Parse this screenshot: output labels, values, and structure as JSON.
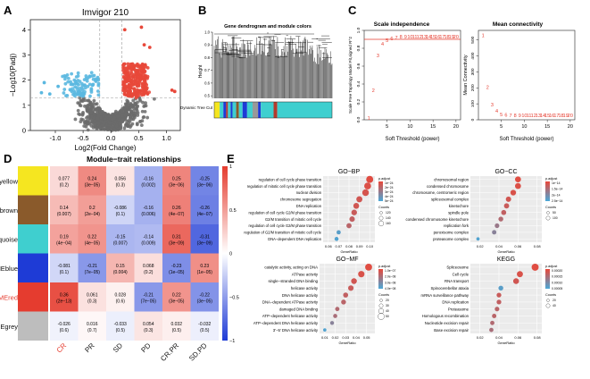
{
  "panels": {
    "a": {
      "letter": "A",
      "title": "Imvigor 210",
      "ylabel": "−Log10(Padj)",
      "xlabel": "Log2(Fold Change)",
      "xticks": [
        "-1.0",
        "-0.5",
        "0.0",
        "0.5",
        "1.0"
      ],
      "yticks": [
        "0",
        "1",
        "2",
        "3",
        "4"
      ],
      "xlim": [
        -1.45,
        1.25
      ],
      "ylim": [
        0,
        4.4
      ],
      "threshold_fc": 0.2,
      "threshold_padj_log": 1.3
    },
    "b": {
      "letter": "B",
      "title": "Gene dendrogram and module colors",
      "ylabel": "Height",
      "yticks": [
        "0.5",
        "0.6",
        "0.7",
        "0.8",
        "0.9",
        "1.0"
      ],
      "ylim": [
        0.48,
        1.0
      ],
      "bar_label": "Dynamic Tree Cut",
      "module_bar_colors": [
        "#f5e620",
        "#3fcfcf",
        "#1e3bd6",
        "#b33a2d",
        "#3fcfcf",
        "#1e3bd6",
        "#3fcfcf",
        "#8a5a2b",
        "#3fcfcf",
        "#1e3bd6",
        "#3fcfcf",
        "#999999",
        "#1e3bd6",
        "#3fcfcf",
        "#b33a2d",
        "#3fcfcf"
      ]
    },
    "c": {
      "letter": "C",
      "left": {
        "title": "Scale independence",
        "xlabel": "Soft Threshold (power)",
        "ylabel": "Scale Free Topology Model Fit,signed R^2",
        "xticks": [
          "5",
          "10",
          "15",
          "20"
        ],
        "yticks": [
          "0.0",
          "0.2",
          "0.4",
          "0.6",
          "0.8",
          "1.0"
        ],
        "xlim": [
          0,
          21
        ],
        "ylim": [
          0,
          1.0
        ],
        "hline": 0.9,
        "points": [
          {
            "x": 1,
            "y": 0.02,
            "label": "1"
          },
          {
            "x": 2,
            "y": 0.33,
            "label": "2"
          },
          {
            "x": 3,
            "y": 0.72,
            "label": "3"
          },
          {
            "x": 4,
            "y": 0.85,
            "label": "4"
          },
          {
            "x": 5,
            "y": 0.89,
            "label": "5"
          },
          {
            "x": 6,
            "y": 0.91,
            "label": "6"
          },
          {
            "x": 7,
            "y": 0.92,
            "label": "7"
          },
          {
            "x": 8,
            "y": 0.93,
            "label": "8"
          },
          {
            "x": 9,
            "y": 0.93,
            "label": "9"
          },
          {
            "x": 10,
            "y": 0.93,
            "label": "10"
          },
          {
            "x": 11,
            "y": 0.93,
            "label": "11"
          },
          {
            "x": 12,
            "y": 0.93,
            "label": "12"
          },
          {
            "x": 13,
            "y": 0.93,
            "label": "13"
          },
          {
            "x": 14,
            "y": 0.93,
            "label": "14"
          },
          {
            "x": 15,
            "y": 0.93,
            "label": "15"
          },
          {
            "x": 16,
            "y": 0.93,
            "label": "16"
          },
          {
            "x": 17,
            "y": 0.93,
            "label": "17"
          },
          {
            "x": 18,
            "y": 0.93,
            "label": "18"
          },
          {
            "x": 19,
            "y": 0.93,
            "label": "19"
          },
          {
            "x": 20,
            "y": 0.93,
            "label": "20"
          }
        ]
      },
      "right": {
        "title": "Mean connectivity",
        "xlabel": "Soft Threshold (power)",
        "ylabel": "Mean Connectivity",
        "xticks": [
          "5",
          "10",
          "15",
          "20"
        ],
        "yticks": [
          "0",
          "100",
          "200",
          "300",
          "400",
          "500"
        ],
        "xlim": [
          0,
          21
        ],
        "ylim": [
          0,
          560
        ],
        "points": [
          {
            "x": 1,
            "y": 530,
            "label": "1"
          },
          {
            "x": 2,
            "y": 205,
            "label": "2"
          },
          {
            "x": 3,
            "y": 95,
            "label": "3"
          },
          {
            "x": 4,
            "y": 55,
            "label": "4"
          },
          {
            "x": 5,
            "y": 35,
            "label": "5"
          },
          {
            "x": 6,
            "y": 30,
            "label": "6"
          },
          {
            "x": 7,
            "y": 28,
            "label": "7"
          },
          {
            "x": 8,
            "y": 28,
            "label": "8"
          },
          {
            "x": 9,
            "y": 28,
            "label": "9"
          },
          {
            "x": 10,
            "y": 28,
            "label": "10"
          },
          {
            "x": 11,
            "y": 28,
            "label": "11"
          },
          {
            "x": 12,
            "y": 28,
            "label": "12"
          },
          {
            "x": 13,
            "y": 28,
            "label": "13"
          },
          {
            "x": 14,
            "y": 28,
            "label": "14"
          },
          {
            "x": 15,
            "y": 28,
            "label": "15"
          },
          {
            "x": 16,
            "y": 28,
            "label": "16"
          },
          {
            "x": 17,
            "y": 28,
            "label": "17"
          },
          {
            "x": 18,
            "y": 28,
            "label": "18"
          },
          {
            "x": 19,
            "y": 28,
            "label": "19"
          },
          {
            "x": 20,
            "y": 28,
            "label": "20"
          }
        ]
      }
    },
    "d": {
      "letter": "D",
      "title": "Module−trait relationships",
      "rows": [
        {
          "name": "MEyellow",
          "color": "#f5e620",
          "highlight": false
        },
        {
          "name": "MEbrown",
          "color": "#8a5a2b",
          "highlight": false
        },
        {
          "name": "MEturquoise",
          "color": "#3fcfcf",
          "highlight": false
        },
        {
          "name": "MEblue",
          "color": "#1e3bd6",
          "highlight": false
        },
        {
          "name": "MEred",
          "color": "#e53c2f",
          "highlight": true
        },
        {
          "name": "MEgrey",
          "color": "#bdbdbd",
          "highlight": false
        }
      ],
      "cols": [
        {
          "name": "CR",
          "highlight": true
        },
        {
          "name": "PR",
          "highlight": false
        },
        {
          "name": "SD",
          "highlight": false
        },
        {
          "name": "PD",
          "highlight": false
        },
        {
          "name": "CR.PR",
          "highlight": false
        },
        {
          "name": "SD.PD",
          "highlight": false
        }
      ],
      "values": [
        [
          0.077,
          0.24,
          0.056,
          -0.16,
          0.25,
          -0.25
        ],
        [
          0.14,
          0.2,
          -0.086,
          -0.16,
          0.26,
          -0.26
        ],
        [
          0.19,
          0.22,
          -0.15,
          -0.14,
          0.31,
          -0.31
        ],
        [
          -0.081,
          -0.21,
          0.15,
          0.068,
          -0.23,
          0.23
        ],
        [
          0.36,
          0.061,
          0.028,
          -0.21,
          0.22,
          -0.22
        ],
        [
          -0.026,
          0.016,
          -0.033,
          0.054,
          0.032,
          -0.032
        ]
      ],
      "pvalues": [
        [
          "(0.2)",
          "(3e−05)",
          "(0.3)",
          "(0.002)",
          "(3e−06)",
          "(3e−06)"
        ],
        [
          "(0.007)",
          "(2e−04)",
          "(0.1)",
          "(0.006)",
          "(4e−07)",
          "(4e−07)"
        ],
        [
          "(4e−04)",
          "(4e−05)",
          "(0.007)",
          "(0.009)",
          "(3e−09)",
          "(3e−09)"
        ],
        [
          "(0.1)",
          "(7e−05)",
          "(0.004)",
          "(0.2)",
          "(1e−05)",
          "(1e−05)"
        ],
        [
          "(2e−13)",
          "(0.3)",
          "(0.6)",
          "(7e−05)",
          "(3e−05)",
          "(3e−05)"
        ],
        [
          "(0.6)",
          "(0.7)",
          "(0.5)",
          "(0.3)",
          "(0.5)",
          "(0.5)"
        ]
      ],
      "colorbar_ticks": [
        "1",
        "0.5",
        "0",
        "−0.5",
        "−1"
      ]
    },
    "e": {
      "letter": "E",
      "go_bp": {
        "title": "GO−BP",
        "xlabel": "GeneRatio",
        "xticks": [
          "0.06",
          "0.07",
          "0.08",
          "0.09",
          "0.10"
        ],
        "xlim": [
          0.055,
          0.105
        ],
        "legend_title": "p.adjust",
        "legend_ticks": [
          "1e−24",
          "2e−24",
          "3e−24",
          "4e−24",
          "5e−24"
        ],
        "count_title": "Counts",
        "count_values": [
          "120",
          "140",
          "160"
        ],
        "terms": [
          {
            "label": "regulation of cell cycle phase transition",
            "ratio": 0.1,
            "padj": 0.05
          },
          {
            "label": "regulation of mitotic cell cycle phase transition",
            "ratio": 0.098,
            "padj": 0.08
          },
          {
            "label": "nuclear division",
            "ratio": 0.096,
            "padj": 0.12
          },
          {
            "label": "chromosome segregation",
            "ratio": 0.09,
            "padj": 0.15
          },
          {
            "label": "DNA replication",
            "ratio": 0.087,
            "padj": 0.15
          },
          {
            "label": "regulation of cell cycle G2/M phase transition",
            "ratio": 0.085,
            "padj": 0.2
          },
          {
            "label": "G2/M transition of mitotic cell cycle",
            "ratio": 0.083,
            "padj": 0.25
          },
          {
            "label": "regulation of cell cycle G2/M phase transition",
            "ratio": 0.08,
            "padj": 0.3
          },
          {
            "label": "regulation of G2/M transition of mitotic cell cycle",
            "ratio": 0.07,
            "padj": 0.9
          },
          {
            "label": "DNA−dependent DNA replication",
            "ratio": 0.068,
            "padj": 0.95
          }
        ]
      },
      "go_cc": {
        "title": "GO−CC",
        "xlabel": "GeneRatio",
        "xticks": [
          "0.02",
          "0.04",
          "0.06",
          "0.08"
        ],
        "xlim": [
          0.01,
          0.085
        ],
        "legend_title": "p.adjust",
        "legend_ticks": [
          "1e−14",
          "1.5e−14",
          "2e−14",
          "2.5e−14"
        ],
        "count_title": "Counts",
        "count_values": [
          "50",
          "100"
        ],
        "terms": [
          {
            "label": "chromosomal region",
            "ratio": 0.06,
            "padj": 0.05
          },
          {
            "label": "condensed chromosome",
            "ratio": 0.06,
            "padj": 0.08
          },
          {
            "label": "chromosome, centromeric region",
            "ratio": 0.055,
            "padj": 0.1
          },
          {
            "label": "spliceosomal complex",
            "ratio": 0.05,
            "padj": 0.15
          },
          {
            "label": "kinetochore",
            "ratio": 0.048,
            "padj": 0.2
          },
          {
            "label": "spindle pole",
            "ratio": 0.045,
            "padj": 0.25
          },
          {
            "label": "condensed chromosome kinetochore",
            "ratio": 0.042,
            "padj": 0.35
          },
          {
            "label": "replication fork",
            "ratio": 0.038,
            "padj": 0.5
          },
          {
            "label": "peroxisome complex",
            "ratio": 0.035,
            "padj": 0.6
          },
          {
            "label": "proteasome complex",
            "ratio": 0.018,
            "padj": 0.95
          }
        ]
      },
      "go_mf": {
        "title": "GO−MF",
        "xlabel": "GeneRatio",
        "xticks": [
          "0.01",
          "0.02",
          "0.03",
          "0.04",
          "0.05"
        ],
        "xlim": [
          0.005,
          0.058
        ],
        "legend_title": "p.adjust",
        "legend_ticks": [
          "1.0e−07",
          "2.0e−08",
          "3.0e−08",
          "4.0e−08"
        ],
        "count_title": "Counts",
        "count_values": [
          "20",
          "30",
          "40",
          "50"
        ],
        "terms": [
          {
            "label": "catalytic activity, acting on DNA",
            "ratio": 0.052,
            "padj": 0.05
          },
          {
            "label": "ATPase activity",
            "ratio": 0.045,
            "padj": 0.1
          },
          {
            "label": "single−stranded DNA binding",
            "ratio": 0.038,
            "padj": 0.15
          },
          {
            "label": "helicase activity",
            "ratio": 0.035,
            "padj": 0.2
          },
          {
            "label": "DNA helicase activity",
            "ratio": 0.03,
            "padj": 0.25
          },
          {
            "label": "DNA−dependent ATPase activity",
            "ratio": 0.028,
            "padj": 0.3
          },
          {
            "label": "damaged DNA binding",
            "ratio": 0.022,
            "padj": 0.35
          },
          {
            "label": "ATP−dependent helicase activity",
            "ratio": 0.02,
            "padj": 0.4
          },
          {
            "label": "ATP−dependent DNA helicase activity",
            "ratio": 0.017,
            "padj": 0.6
          },
          {
            "label": "3'−5' DNA helicase activity",
            "ratio": 0.01,
            "padj": 0.95
          }
        ]
      },
      "kegg": {
        "title": "KEGG",
        "xlabel": "GeneRatio",
        "xticks": [
          "0.02",
          "0.04",
          "0.06",
          "0.08"
        ],
        "xlim": [
          0.01,
          0.085
        ],
        "legend_title": "p.adjust",
        "legend_ticks": [
          "0.00020",
          "0.00015",
          "0.00010",
          "0.00005"
        ],
        "count_title": "Counts",
        "count_values": [
          "20",
          "40"
        ],
        "terms": [
          {
            "label": "Spliceosome",
            "ratio": 0.078,
            "padj": 0.05
          },
          {
            "label": "Cell cycle",
            "ratio": 0.062,
            "padj": 0.1
          },
          {
            "label": "RNA transport",
            "ratio": 0.058,
            "padj": 0.15
          },
          {
            "label": "Spinocerebellar ataxia",
            "ratio": 0.042,
            "padj": 0.9
          },
          {
            "label": "mRNA surveillance pathway",
            "ratio": 0.04,
            "padj": 0.2
          },
          {
            "label": "DNA replication",
            "ratio": 0.04,
            "padj": 0.25
          },
          {
            "label": "Proteasome",
            "ratio": 0.038,
            "padj": 0.3
          },
          {
            "label": "Homologous recombination",
            "ratio": 0.035,
            "padj": 0.3
          },
          {
            "label": "Nucleotide excision repair",
            "ratio": 0.033,
            "padj": 0.35
          },
          {
            "label": "Base excision repair",
            "ratio": 0.032,
            "padj": 0.4
          }
        ]
      }
    }
  },
  "chart_data": [
    {
      "type": "scatter",
      "title": "Imvigor 210",
      "xlabel": "Log2(Fold Change)",
      "ylabel": "−Log10(Padj)",
      "xlim": [
        -1.45,
        1.25
      ],
      "ylim": [
        0,
        4.4
      ]
    },
    {
      "type": "scatter",
      "title": "Scale independence",
      "xlabel": "Soft Threshold (power)",
      "ylabel": "Scale Free Topology Model Fit,signed R^2",
      "x": [
        1,
        2,
        3,
        4,
        5,
        6,
        7,
        8,
        9,
        10,
        11,
        12,
        13,
        14,
        15,
        16,
        17,
        18,
        19,
        20
      ],
      "y": [
        0.02,
        0.33,
        0.72,
        0.85,
        0.89,
        0.91,
        0.92,
        0.93,
        0.93,
        0.93,
        0.93,
        0.93,
        0.93,
        0.93,
        0.93,
        0.93,
        0.93,
        0.93,
        0.93,
        0.93
      ]
    },
    {
      "type": "scatter",
      "title": "Mean connectivity",
      "xlabel": "Soft Threshold (power)",
      "ylabel": "Mean Connectivity",
      "x": [
        1,
        2,
        3,
        4,
        5,
        6,
        7,
        8,
        9,
        10,
        11,
        12,
        13,
        14,
        15,
        16,
        17,
        18,
        19,
        20
      ],
      "y": [
        530,
        205,
        95,
        55,
        35,
        30,
        28,
        28,
        28,
        28,
        28,
        28,
        28,
        28,
        28,
        28,
        28,
        28,
        28,
        28
      ]
    },
    {
      "type": "heatmap",
      "title": "Module−trait relationships",
      "rows": [
        "MEyellow",
        "MEbrown",
        "MEturquoise",
        "MEblue",
        "MEred",
        "MEgrey"
      ],
      "cols": [
        "CR",
        "PR",
        "SD",
        "PD",
        "CR.PR",
        "SD.PD"
      ],
      "values": [
        [
          0.077,
          0.24,
          0.056,
          -0.16,
          0.25,
          -0.25
        ],
        [
          0.14,
          0.2,
          -0.086,
          -0.16,
          0.26,
          -0.26
        ],
        [
          0.19,
          0.22,
          -0.15,
          -0.14,
          0.31,
          -0.31
        ],
        [
          -0.081,
          -0.21,
          0.15,
          0.068,
          -0.23,
          0.23
        ],
        [
          0.36,
          0.061,
          0.028,
          -0.21,
          0.22,
          -0.22
        ],
        [
          -0.026,
          0.016,
          -0.033,
          0.054,
          0.032,
          -0.032
        ]
      ]
    },
    {
      "type": "scatter",
      "title": "GO−BP",
      "xlabel": "GeneRatio"
    },
    {
      "type": "scatter",
      "title": "GO−CC",
      "xlabel": "GeneRatio"
    },
    {
      "type": "scatter",
      "title": "GO−MF",
      "xlabel": "GeneRatio"
    },
    {
      "type": "scatter",
      "title": "KEGG",
      "xlabel": "GeneRatio"
    }
  ],
  "colors": {
    "up": "#e8483a",
    "down": "#5bb8e0",
    "ns": "#6b6b6b",
    "pos": "#e53c2f",
    "neg": "#1e3bd6",
    "enrich_low": "#e8483a",
    "enrich_high": "#4aa8d8"
  }
}
